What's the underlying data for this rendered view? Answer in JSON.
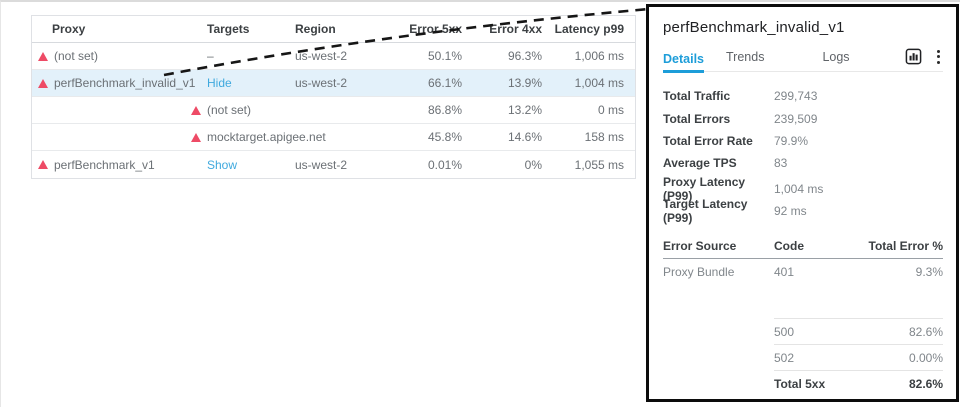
{
  "colors": {
    "accent_blue": "#1d9dd9",
    "link_blue": "#3fa9de",
    "alert_red": "#ee4b66",
    "highlight_row": "#e3f1fa"
  },
  "table": {
    "columns": [
      "Proxy",
      "Targets",
      "Region",
      "Error 5xx",
      "Error 4xx",
      "Latency p99"
    ],
    "rows": [
      {
        "proxy": "(not set)",
        "alert": true,
        "targets": "–",
        "targets_link": false,
        "region": "us-west-2",
        "e5": "50.1%",
        "e4": "96.3%",
        "lat": "1,006 ms",
        "highlight": false
      },
      {
        "proxy": "perfBenchmark_invalid_v1",
        "alert": true,
        "targets": "Hide",
        "targets_link": true,
        "region": "us-west-2",
        "e5": "66.1%",
        "e4": "13.9%",
        "lat": "1,004 ms",
        "highlight": true
      },
      {
        "target": "(not set)",
        "alert": true,
        "e5": "86.8%",
        "e4": "13.2%",
        "lat": "0 ms",
        "highlight": false
      },
      {
        "target": "mocktarget.apigee.net",
        "alert": true,
        "e5": "45.8%",
        "e4": "14.6%",
        "lat": "158 ms",
        "highlight": false
      },
      {
        "proxy": "perfBenchmark_v1",
        "alert": true,
        "targets": "Show",
        "targets_link": true,
        "region": "us-west-2",
        "e5": "0.01%",
        "e4": "0%",
        "lat": "1,055 ms",
        "highlight": false
      }
    ]
  },
  "panel": {
    "title": "perfBenchmark_invalid_v1",
    "tabs": [
      {
        "label": "Details",
        "active": true
      },
      {
        "label": "Trends",
        "active": false
      },
      {
        "label": "Logs",
        "active": false
      }
    ],
    "stats": [
      {
        "label": "Total Traffic",
        "value": "299,743"
      },
      {
        "label": "Total Errors",
        "value": "239,509"
      },
      {
        "label": "Total Error Rate",
        "value": "79.9%"
      },
      {
        "label": "Average TPS",
        "value": "83"
      },
      {
        "label": "Proxy Latency (P99)",
        "value": "1,004 ms"
      },
      {
        "label": "Target Latency (P99)",
        "value": "92 ms"
      }
    ],
    "error_table": {
      "columns": [
        "Error Source",
        "Code",
        "Total Error %"
      ],
      "rows": [
        {
          "source": "Proxy Bundle",
          "code": "401",
          "pct": "9.3%"
        }
      ],
      "code_rows": [
        {
          "code": "500",
          "pct": "82.6%"
        },
        {
          "code": "502",
          "pct": "0.00%"
        }
      ],
      "total": {
        "label": "Total 5xx",
        "pct": "82.6%"
      }
    }
  }
}
